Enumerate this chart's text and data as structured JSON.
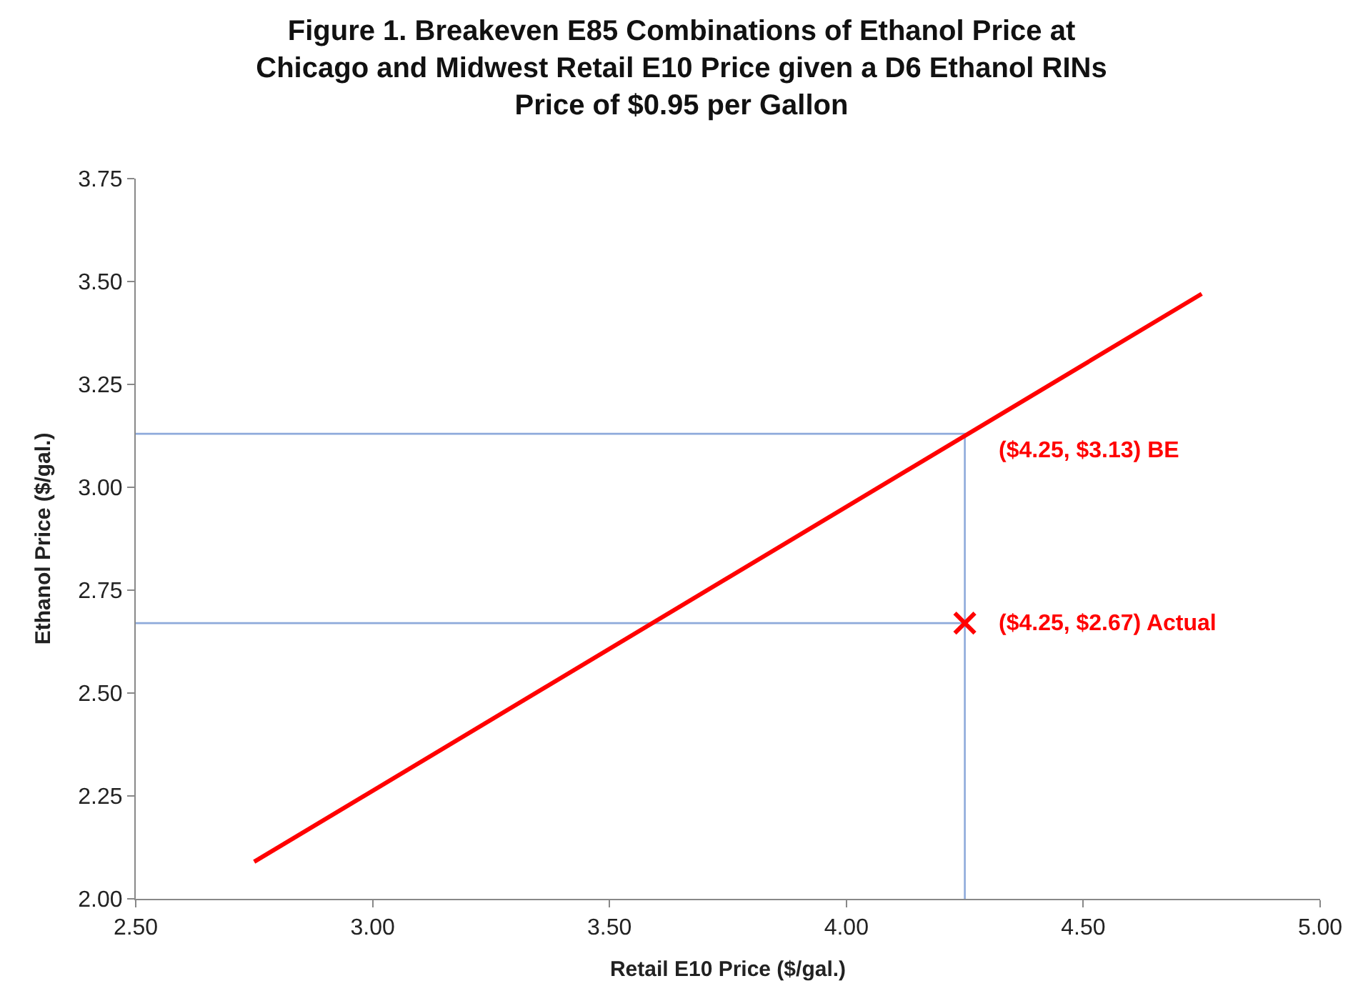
{
  "chart_data": {
    "type": "line",
    "title": "Figure 1. Breakeven E85 Combinations of Ethanol Price at\nChicago and Midwest Retail E10 Price given a D6 Ethanol RINs\nPrice of $0.95 per Gallon",
    "xlabel": "Retail E10 Price ($/gal.)",
    "ylabel": "Ethanol Price ($/gal.)",
    "xlim": [
      2.5,
      5.0
    ],
    "xticks": [
      {
        "value": 2.5,
        "label": "2.50"
      },
      {
        "value": 3.0,
        "label": "3.00"
      },
      {
        "value": 3.5,
        "label": "3.50"
      },
      {
        "value": 4.0,
        "label": "4.00"
      },
      {
        "value": 4.5,
        "label": "4.50"
      },
      {
        "value": 5.0,
        "label": "5.00"
      }
    ],
    "ylim": [
      2.0,
      3.75
    ],
    "yticks": [
      {
        "value": 2.0,
        "label": "2.00"
      },
      {
        "value": 2.25,
        "label": "2.25"
      },
      {
        "value": 2.5,
        "label": "2.50"
      },
      {
        "value": 2.75,
        "label": "2.75"
      },
      {
        "value": 3.0,
        "label": "3.00"
      },
      {
        "value": 3.25,
        "label": "3.25"
      },
      {
        "value": 3.5,
        "label": "3.50"
      },
      {
        "value": 3.75,
        "label": "3.75"
      }
    ],
    "series": [
      {
        "color": "#8eaadb",
        "marker": "none",
        "x": [
          2.5,
          4.25,
          4.25
        ],
        "values": [
          3.13,
          3.13,
          2.0
        ]
      },
      {
        "color": "#8eaadb",
        "marker": "none",
        "x": [
          2.5,
          4.25
        ],
        "values": [
          2.67,
          2.67
        ]
      },
      {
        "color": "#ff0000",
        "marker": "none",
        "x": [
          2.75,
          4.75
        ],
        "values": [
          2.09,
          3.47
        ]
      },
      {
        "type": "scatter",
        "color": "#ff0000",
        "marker": "cross",
        "x": [
          4.25
        ],
        "values": [
          2.67
        ]
      }
    ],
    "annotations": [
      {
        "text": "($4.25, $3.13) BE",
        "x": 4.25,
        "y": 3.13
      },
      {
        "text": "($4.25, $2.67) Actual",
        "x": 4.25,
        "y": 2.67
      }
    ]
  }
}
